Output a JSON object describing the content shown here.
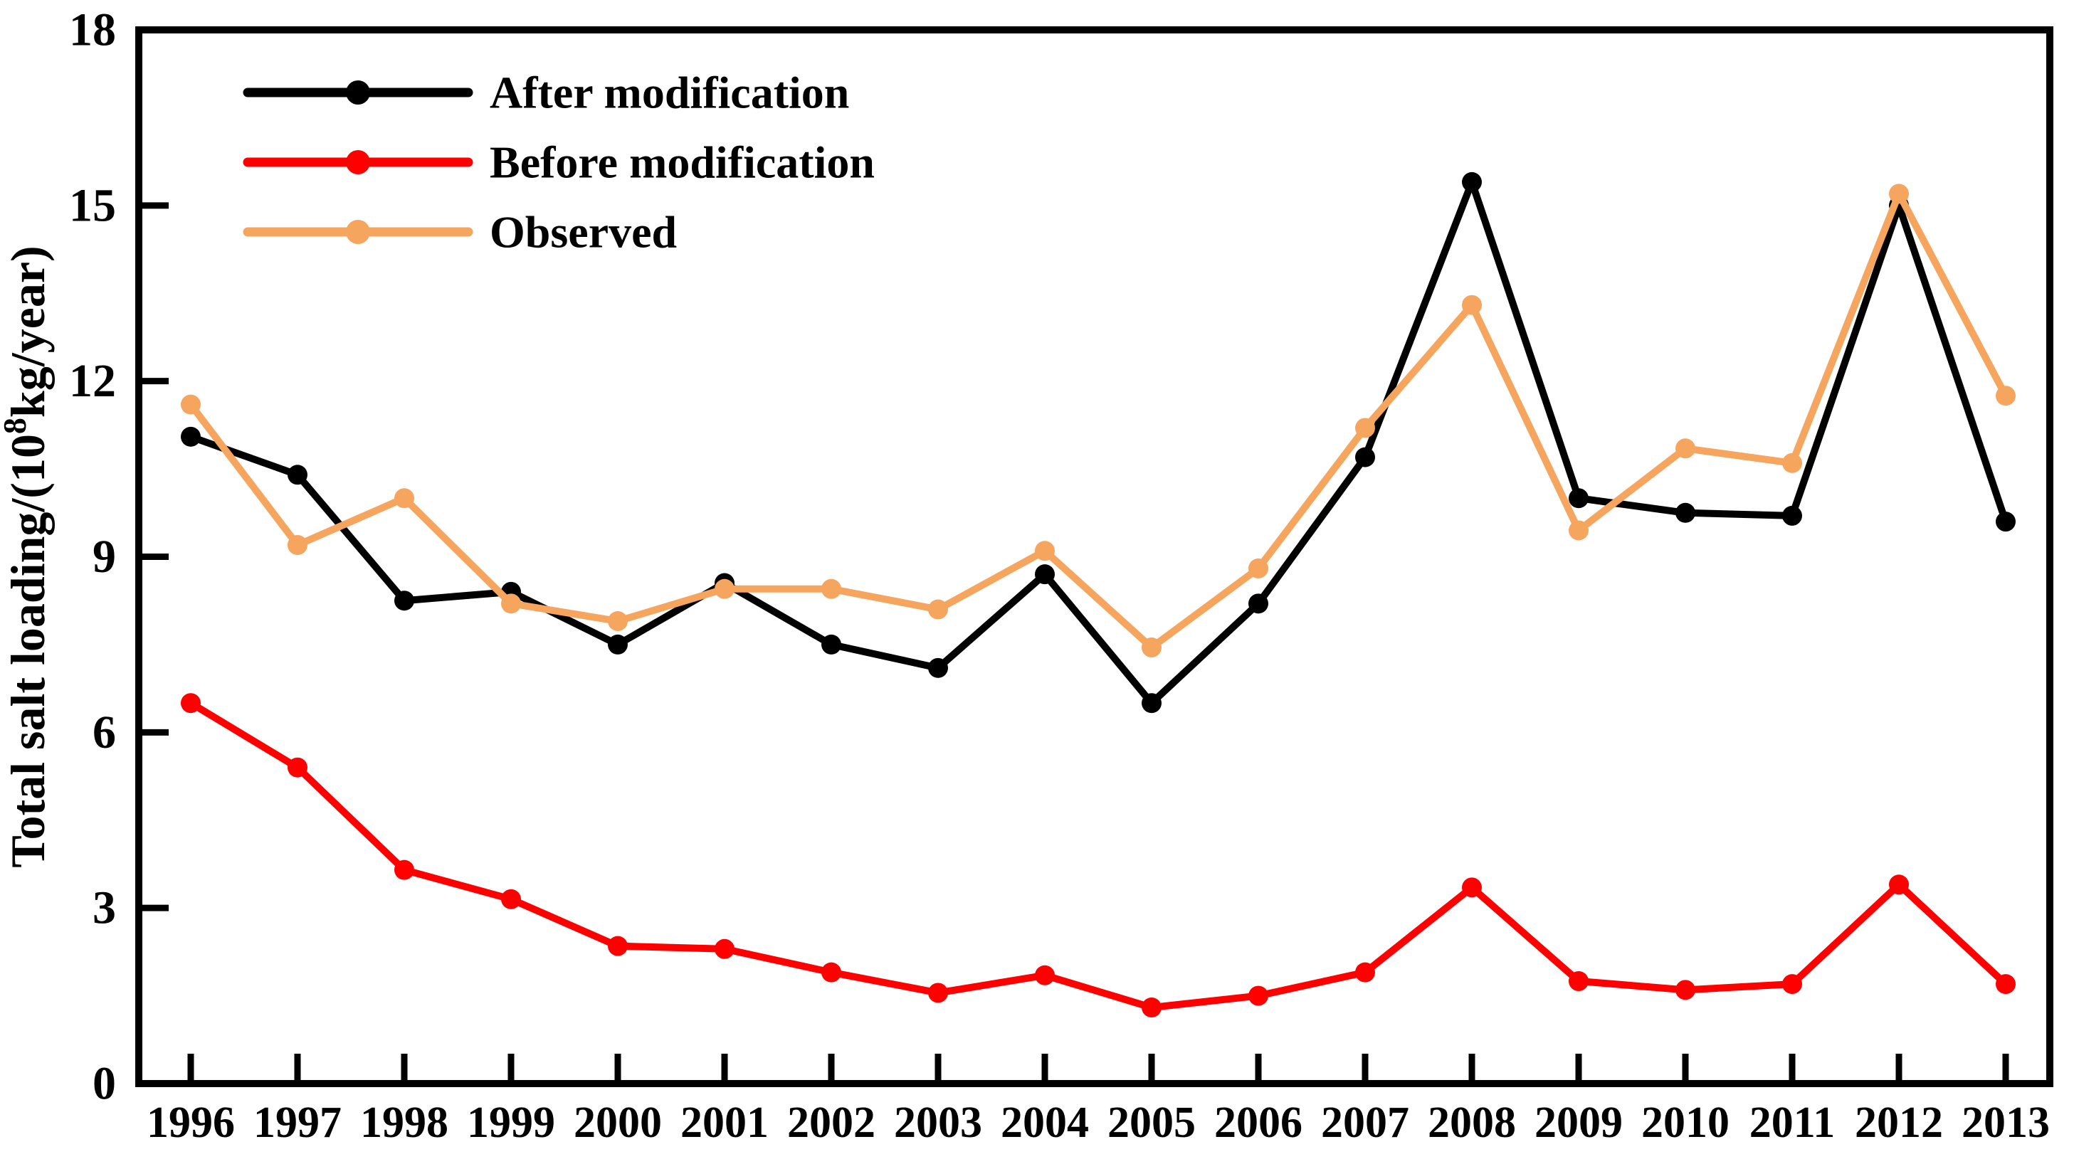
{
  "chart_data": {
    "type": "line",
    "title": "",
    "xlabel": "",
    "ylabel_parts": [
      "Total salt loading/(10",
      "8",
      "kg/year)"
    ],
    "ylim": [
      0,
      18
    ],
    "yticks": [
      0,
      3,
      6,
      9,
      12,
      15,
      18
    ],
    "grid": false,
    "legend_position": "top-left",
    "axis_color": "#000000",
    "categories": [
      "1996",
      "1997",
      "1998",
      "1999",
      "2000",
      "2001",
      "2002",
      "2003",
      "2004",
      "2005",
      "2006",
      "2007",
      "2008",
      "2009",
      "2010",
      "2011",
      "2012",
      "2013"
    ],
    "series": [
      {
        "name": "After modification",
        "color": "#000000",
        "values": [
          11.05,
          10.4,
          8.25,
          8.4,
          7.5,
          8.55,
          7.5,
          7.1,
          8.7,
          6.5,
          8.2,
          10.7,
          15.4,
          10.0,
          9.75,
          9.7,
          15.0,
          9.6
        ]
      },
      {
        "name": "Before modification",
        "color": "#ff0000",
        "values": [
          6.5,
          5.4,
          3.65,
          3.15,
          2.35,
          2.3,
          1.9,
          1.55,
          1.85,
          1.3,
          1.5,
          1.9,
          3.35,
          1.75,
          1.6,
          1.7,
          3.4,
          1.7
        ]
      },
      {
        "name": "Observed",
        "color": "#f6a55f",
        "values": [
          11.6,
          9.2,
          10.0,
          8.2,
          7.9,
          8.45,
          8.45,
          8.1,
          9.1,
          7.45,
          8.8,
          11.2,
          13.3,
          9.45,
          10.85,
          10.6,
          15.2,
          11.75
        ]
      }
    ]
  }
}
